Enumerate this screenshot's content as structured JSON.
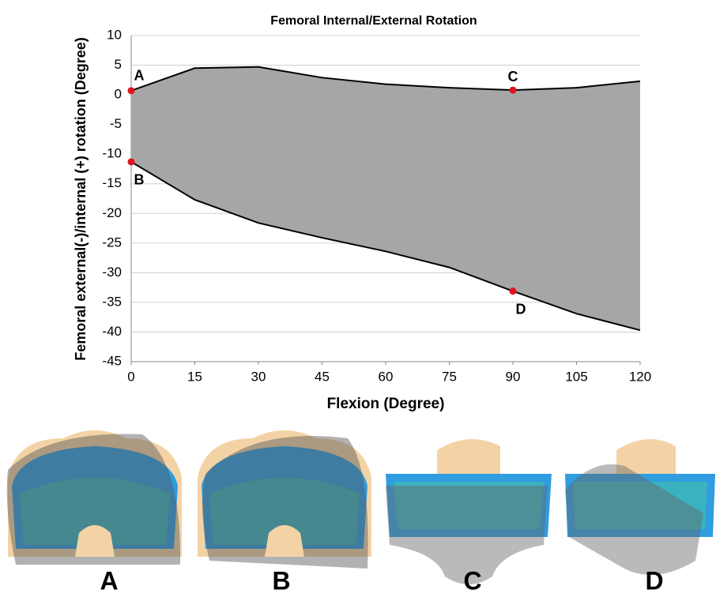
{
  "chart_data": {
    "type": "area_band",
    "title": "Femoral Internal/External Rotation",
    "x_label": "Flexion (Degree)",
    "y_label": "Femoral external(-)/internal (+) rotation (Degree)",
    "x": [
      0,
      15,
      30,
      45,
      60,
      75,
      90,
      105,
      120
    ],
    "upper": [
      0.7,
      4.5,
      4.7,
      2.9,
      1.8,
      1.2,
      0.8,
      1.2,
      2.3
    ],
    "lower": [
      -11.3,
      -17.7,
      -21.6,
      -24.1,
      -26.4,
      -29.1,
      -33.1,
      -36.9,
      -39.7
    ],
    "color": "#a6a6a6",
    "line_color": "#000000",
    "xlim": [
      0,
      120
    ],
    "xticks": [
      0,
      15,
      30,
      45,
      60,
      75,
      90,
      105,
      120
    ],
    "ylim": [
      -45,
      10
    ],
    "yticks": [
      -45,
      -40,
      -35,
      -30,
      -25,
      -20,
      -15,
      -10,
      -5,
      0,
      5,
      10
    ],
    "grid": true,
    "points": [
      {
        "label": "A",
        "x": 0,
        "y": 0.7
      },
      {
        "label": "B",
        "x": 0,
        "y": -11.3
      },
      {
        "label": "C",
        "x": 90,
        "y": 0.8
      },
      {
        "label": "D",
        "x": 90,
        "y": -33.1
      }
    ],
    "point_color": "#e0141e"
  },
  "panels": [
    "A",
    "B",
    "C",
    "D"
  ]
}
